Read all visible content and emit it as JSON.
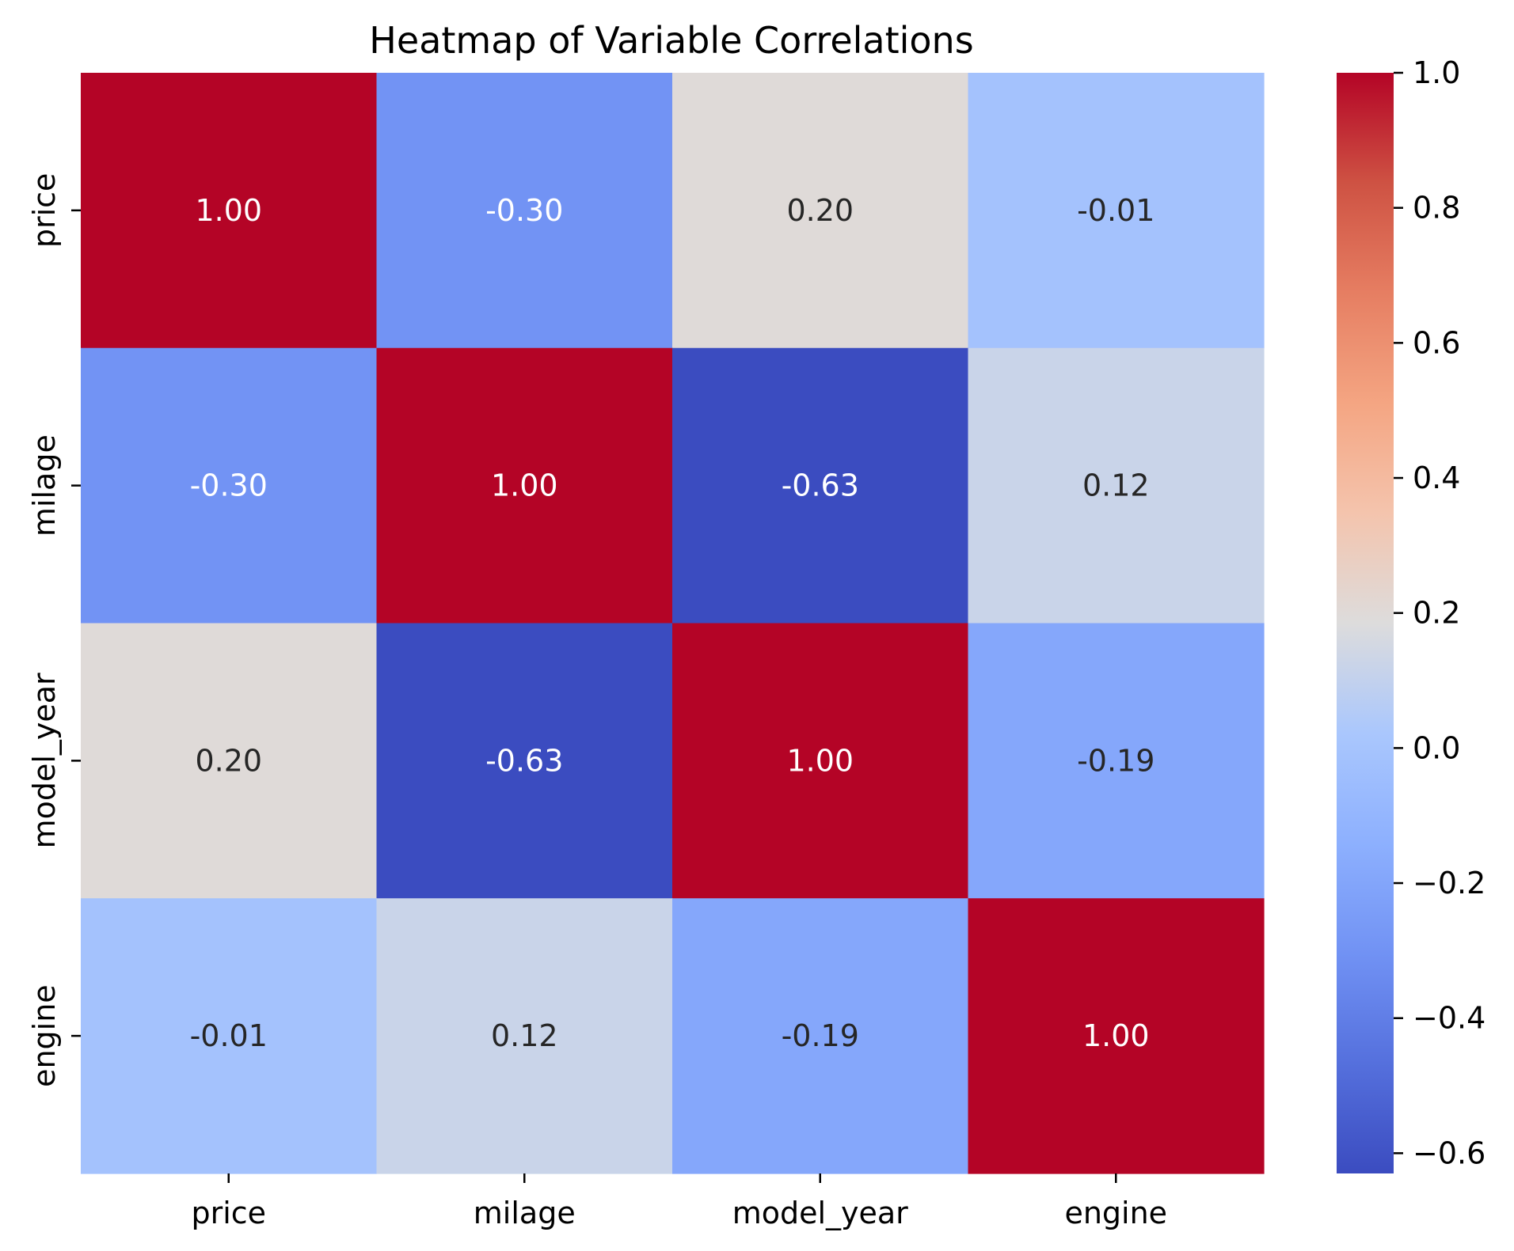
{
  "chart_data": {
    "type": "heatmap",
    "title": "Heatmap of Variable Correlations",
    "xlabel": "",
    "ylabel": "",
    "x_labels": [
      "price",
      "milage",
      "model_year",
      "engine"
    ],
    "y_labels": [
      "price",
      "milage",
      "model_year",
      "engine"
    ],
    "values": [
      [
        1.0,
        -0.3,
        0.2,
        -0.01
      ],
      [
        -0.3,
        1.0,
        -0.63,
        0.12
      ],
      [
        0.2,
        -0.63,
        1.0,
        -0.19
      ],
      [
        -0.01,
        0.12,
        -0.19,
        1.0
      ]
    ],
    "annotation_format": "0.00",
    "colormap": "coolwarm",
    "value_range": [
      -0.63,
      1.0
    ],
    "colorbar": {
      "ticks": [
        1.0,
        0.8,
        0.6,
        0.4,
        0.2,
        0.0,
        -0.2,
        -0.4,
        -0.6
      ],
      "tick_labels": [
        "1.0",
        "0.8",
        "0.6",
        "0.4",
        "0.2",
        "0.0",
        "−0.2",
        "−0.4",
        "−0.6"
      ],
      "placement": "right"
    },
    "grid": false,
    "colors": {
      "max": "#b40426",
      "mid": "#dddcdc",
      "min": "#3b4cc0",
      "annotation_dark": "#262626",
      "annotation_light": "#ffffff"
    }
  }
}
